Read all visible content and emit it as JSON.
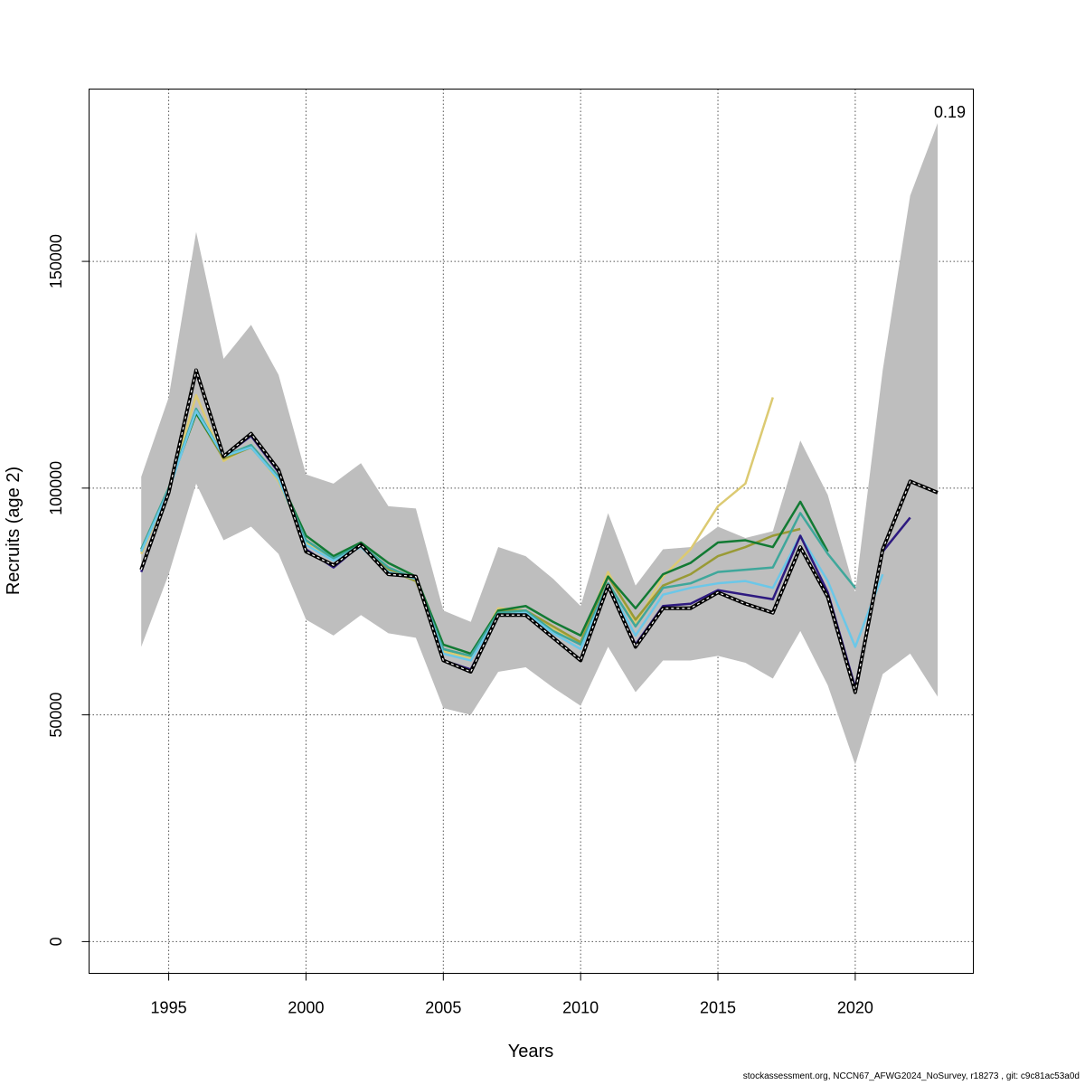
{
  "chart_data": {
    "type": "line",
    "title": "",
    "xlabel": "Years",
    "ylabel": "Recruits (age 2)",
    "xlim": [
      1992.1,
      2024.3
    ],
    "ylim": [
      -7000,
      188000
    ],
    "x_ticks": [
      1995,
      2000,
      2005,
      2010,
      2015,
      2020
    ],
    "x_tick_labels": [
      "1995",
      "2000",
      "2005",
      "2010",
      "2015",
      "2020"
    ],
    "y_ticks": [
      0,
      50000,
      100000,
      150000
    ],
    "y_tick_labels": [
      "0",
      "50000",
      "100000",
      "150000"
    ],
    "grid": true,
    "legend": "none",
    "annotation": "0.19",
    "confidence_band": {
      "x": [
        1994,
        1995,
        1996,
        1997,
        1998,
        1999,
        2000,
        2001,
        2002,
        2003,
        2004,
        2005,
        2006,
        2007,
        2008,
        2009,
        2010,
        2011,
        2012,
        2013,
        2014,
        2015,
        2016,
        2017,
        2018,
        2019,
        2020,
        2021,
        2022,
        2023
      ],
      "upper": [
        102500,
        120000,
        156500,
        128500,
        136000,
        125000,
        103000,
        101000,
        105500,
        96000,
        95500,
        73000,
        70500,
        87000,
        85000,
        80000,
        74000,
        94500,
        78500,
        86500,
        87000,
        91500,
        89000,
        90500,
        110500,
        98500,
        77000,
        126000,
        164500,
        180500
      ],
      "lower": [
        65000,
        81000,
        101000,
        88500,
        91500,
        85500,
        71000,
        67500,
        72000,
        68000,
        67000,
        51500,
        50000,
        59500,
        60500,
        56000,
        52000,
        65000,
        55000,
        62000,
        62000,
        63000,
        61500,
        58000,
        68500,
        56500,
        39000,
        59000,
        63500,
        54000
      ],
      "color": "#bebebe"
    },
    "series": [
      {
        "color": "#000000",
        "dashed": true,
        "x": [
          1994,
          1995,
          1996,
          1997,
          1998,
          1999,
          2000,
          2001,
          2002,
          2003,
          2004,
          2005,
          2006,
          2007,
          2008,
          2009,
          2010,
          2011,
          2012,
          2013,
          2014,
          2015,
          2016,
          2017,
          2018,
          2019,
          2020,
          2021,
          2022,
          2023
        ],
        "values": [
          82000,
          99000,
          126000,
          107000,
          112000,
          104000,
          86000,
          83000,
          87500,
          81000,
          80500,
          62000,
          59500,
          72000,
          72000,
          67000,
          62000,
          78500,
          65000,
          73500,
          73500,
          77000,
          74500,
          72500,
          87000,
          76000,
          55000,
          86500,
          101500,
          99000
        ]
      },
      {
        "color": "#2e1a80",
        "x": [
          1994,
          1995,
          1996,
          1997,
          1998,
          1999,
          2000,
          2001,
          2002,
          2003,
          2004,
          2005,
          2006,
          2007,
          2008,
          2009,
          2010,
          2011,
          2012,
          2013,
          2014,
          2015,
          2016,
          2017,
          2018,
          2019,
          2020,
          2021,
          2022
        ],
        "values": [
          81500,
          99000,
          125500,
          107000,
          111500,
          103500,
          86500,
          82500,
          87500,
          81000,
          80500,
          62000,
          60000,
          72000,
          72000,
          67000,
          62000,
          78500,
          65500,
          74000,
          74500,
          77500,
          76500,
          75500,
          89500,
          77000,
          56000,
          86000,
          93500
        ]
      },
      {
        "color": "#6bc7e8",
        "x": [
          1994,
          1995,
          1996,
          1997,
          1998,
          1999,
          2000,
          2001,
          2002,
          2003,
          2004,
          2005,
          2006,
          2007,
          2008,
          2009,
          2010,
          2011,
          2012,
          2013,
          2014,
          2015,
          2016,
          2017,
          2018,
          2019,
          2020,
          2021
        ],
        "values": [
          86000,
          99500,
          117000,
          107000,
          109000,
          102000,
          87500,
          84000,
          87000,
          81500,
          80000,
          63500,
          62000,
          72000,
          72500,
          68000,
          64500,
          78500,
          67500,
          76500,
          78000,
          79000,
          79500,
          78000,
          89500,
          79500,
          65000,
          81000
        ]
      },
      {
        "color": "#3fa79b",
        "x": [
          1994,
          1995,
          1996,
          1997,
          1998,
          1999,
          2000,
          2001,
          2002,
          2003,
          2004,
          2005,
          2006,
          2007,
          2008,
          2009,
          2010,
          2011,
          2012,
          2013,
          2014,
          2015,
          2016,
          2017,
          2018,
          2019,
          2020
        ],
        "values": [
          86500,
          100000,
          117500,
          107000,
          109500,
          102500,
          88500,
          84500,
          87500,
          82500,
          80000,
          64500,
          63000,
          72500,
          73000,
          68500,
          65500,
          79000,
          69500,
          78000,
          79000,
          81500,
          82000,
          82500,
          94500,
          85500,
          78000
        ]
      },
      {
        "color": "#127a33",
        "x": [
          1994,
          1995,
          1996,
          1997,
          1998,
          1999,
          2000,
          2001,
          2002,
          2003,
          2004,
          2005,
          2006,
          2007,
          2008,
          2009,
          2010,
          2011,
          2012,
          2013,
          2014,
          2015,
          2016,
          2017,
          2018,
          2019
        ],
        "values": [
          86500,
          100000,
          116500,
          107000,
          109000,
          102500,
          89500,
          85000,
          88000,
          83500,
          80500,
          65500,
          63500,
          73000,
          74000,
          70500,
          67500,
          80500,
          73500,
          81000,
          83500,
          88000,
          88500,
          87000,
          97000,
          86000
        ]
      },
      {
        "color": "#999a35",
        "x": [
          1994,
          1995,
          1996,
          1997,
          1998,
          1999,
          2000,
          2001,
          2002,
          2003,
          2004,
          2005,
          2006,
          2007,
          2008,
          2009,
          2010,
          2011,
          2012,
          2013,
          2014,
          2015,
          2016,
          2017,
          2018
        ],
        "values": [
          86000,
          100000,
          116500,
          106500,
          109000,
          102000,
          88500,
          84500,
          87500,
          82000,
          79500,
          64500,
          63000,
          73000,
          73000,
          69500,
          66000,
          80500,
          71000,
          78500,
          81000,
          85000,
          87000,
          89500,
          91000
        ]
      },
      {
        "color": "#dcca72",
        "x": [
          1994,
          1995,
          1996,
          1997,
          1998,
          1999,
          2000,
          2001,
          2002,
          2003,
          2004,
          2005,
          2006,
          2007,
          2008,
          2009,
          2010,
          2011,
          2012,
          2013,
          2014,
          2015,
          2016,
          2017
        ],
        "values": [
          85500,
          99500,
          120500,
          106000,
          109500,
          101500,
          88000,
          84000,
          87500,
          82000,
          80000,
          64000,
          62500,
          73500,
          73000,
          69000,
          66000,
          81500,
          70000,
          80500,
          86500,
          96000,
          101000,
          120000
        ]
      }
    ]
  },
  "footer": "stockassessment.org, NCCN67_AFWG2024_NoSurvey, r18273 , git: c9c81ac53a0d"
}
